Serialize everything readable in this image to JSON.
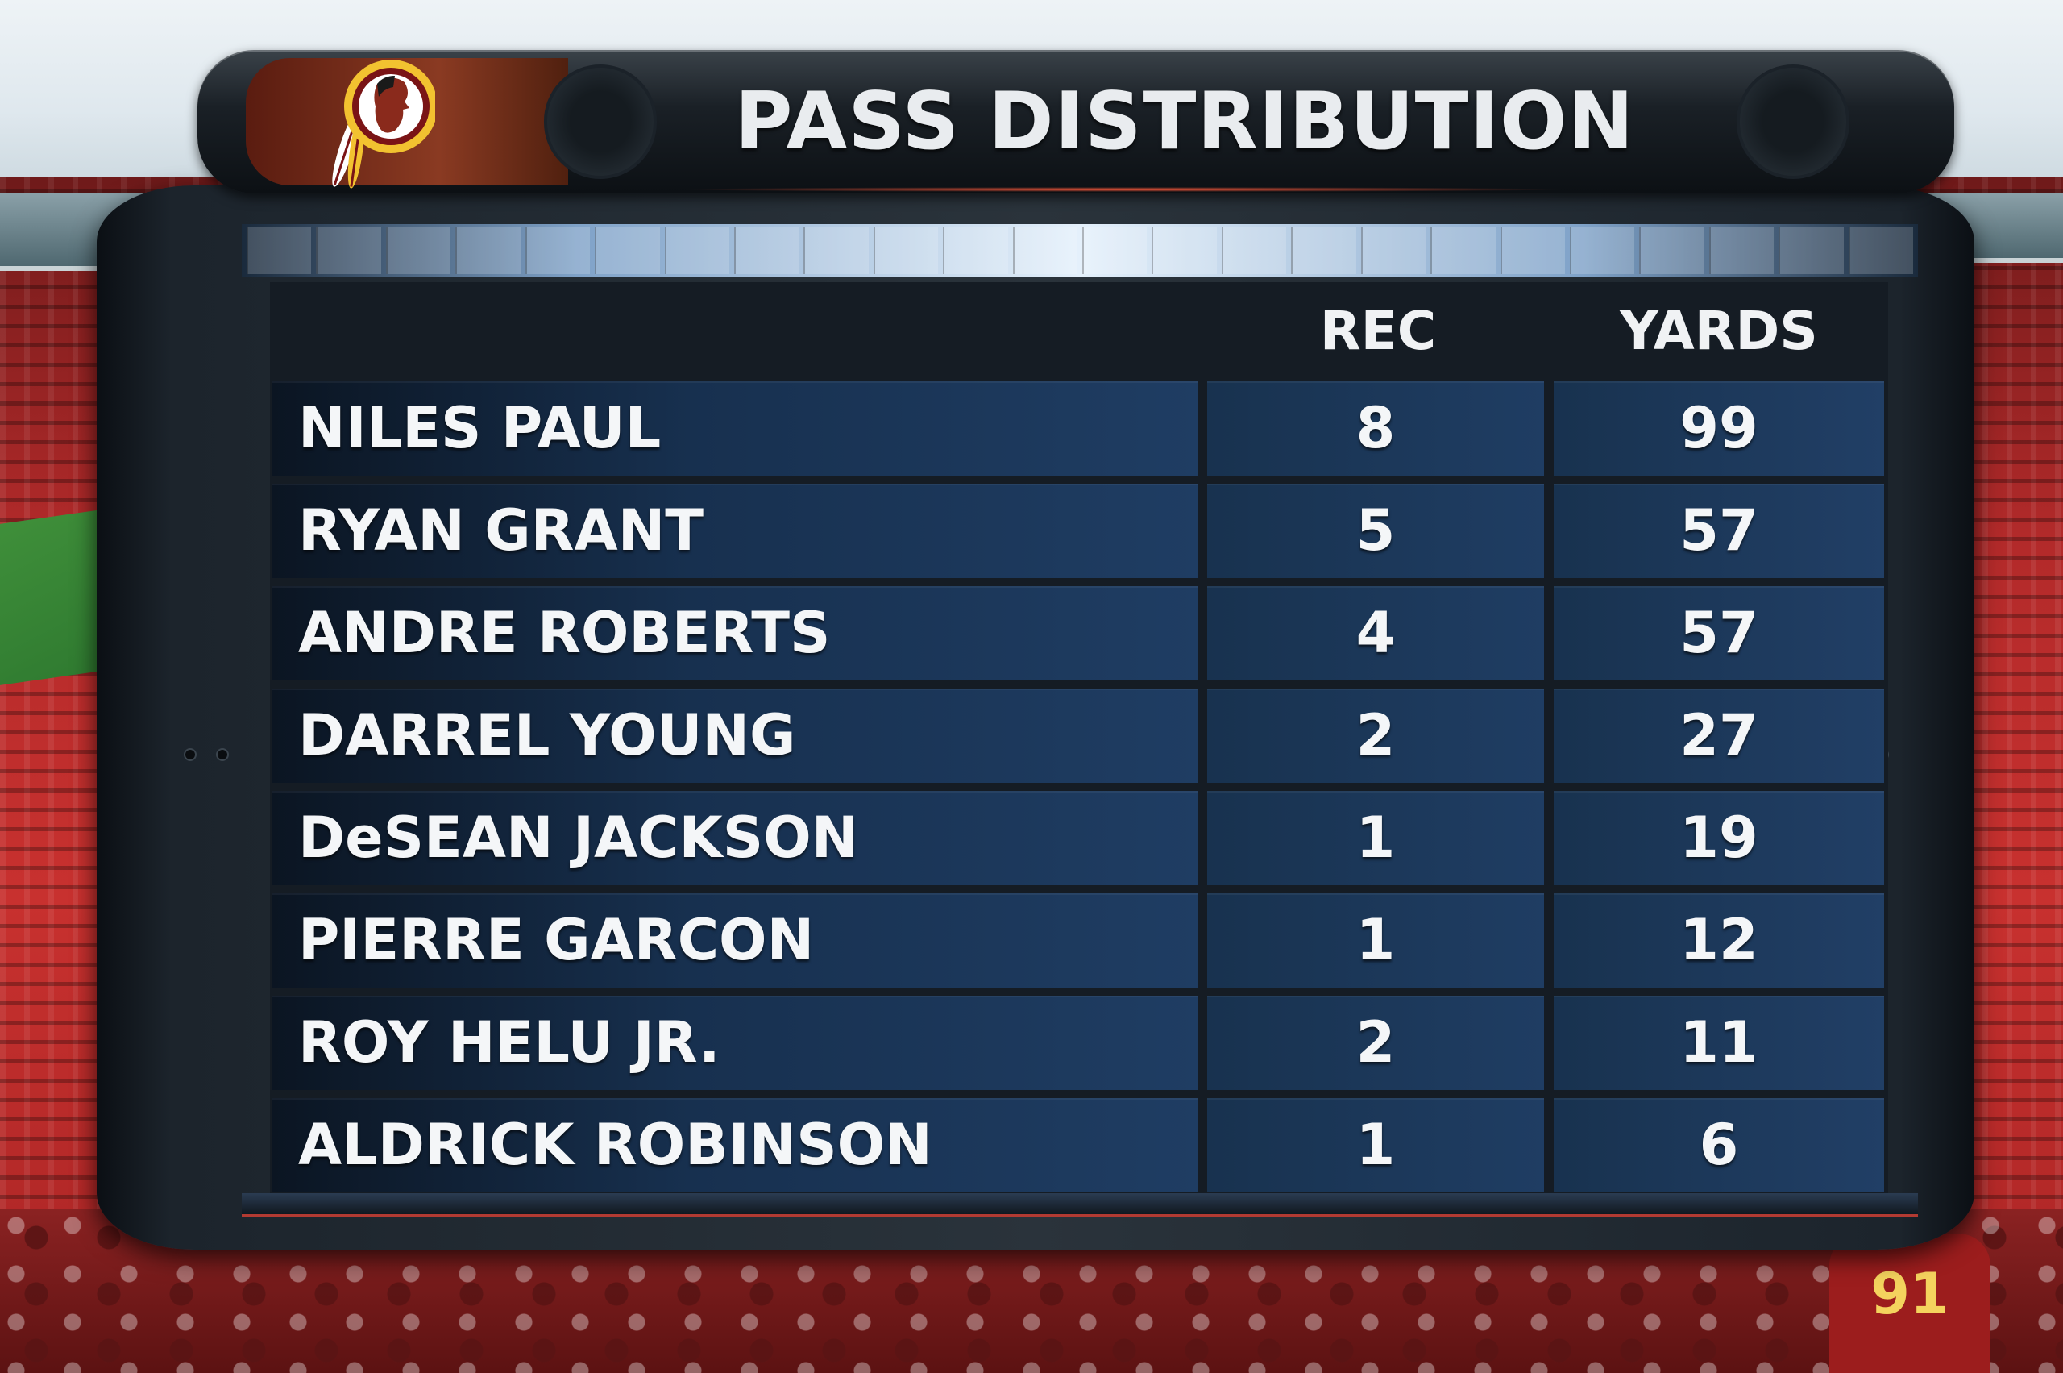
{
  "graphic": {
    "title": "PASS DISTRIBUTION",
    "logo_icon": "washington-team-logo-icon"
  },
  "table": {
    "columns": [
      "",
      "REC",
      "YARDS"
    ],
    "rows": [
      {
        "player": "NILES PAUL",
        "rec": "8",
        "yards": "99"
      },
      {
        "player": "RYAN GRANT",
        "rec": "5",
        "yards": "57"
      },
      {
        "player": "ANDRE ROBERTS",
        "rec": "4",
        "yards": "57"
      },
      {
        "player": "DARREL YOUNG",
        "rec": "2",
        "yards": "27"
      },
      {
        "player": "DeSEAN JACKSON",
        "rec": "1",
        "yards": "19"
      },
      {
        "player": "PIERRE GARCON",
        "rec": "1",
        "yards": "12"
      },
      {
        "player": "ROY HELU JR.",
        "rec": "2",
        "yards": "11"
      },
      {
        "player": "ALDRICK ROBINSON",
        "rec": "1",
        "yards": "6"
      }
    ]
  },
  "background": {
    "fan_jersey_number": "91"
  },
  "colors": {
    "header_dark": "#1a2026",
    "row_blue": "#1f3d63",
    "accent_red": "#b23a32",
    "logo_gold": "#f2c230",
    "logo_burgundy": "#7a1416"
  }
}
